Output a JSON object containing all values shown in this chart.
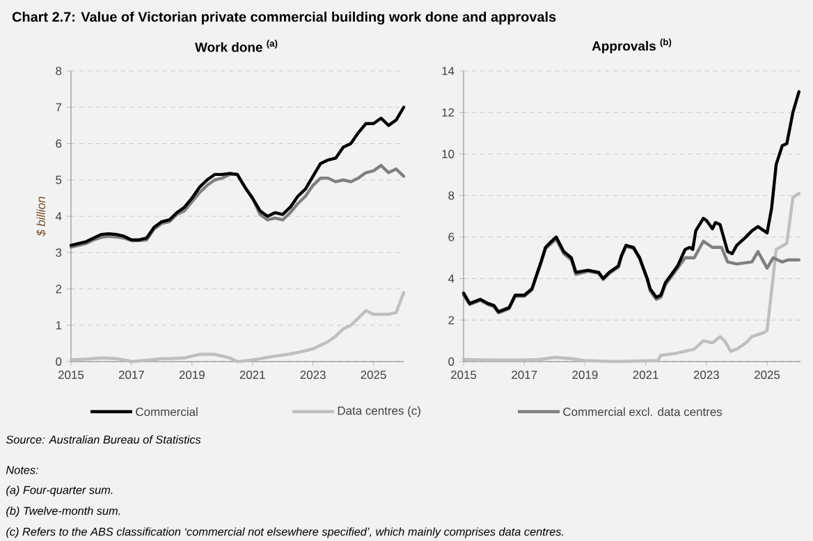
{
  "chart_data": [
    {
      "type": "line",
      "title": "Chart 2.7: Value of Victorian private commercial building work done and approvals",
      "subtitle": "Work done $^{(a)}$",
      "ylabel": "$ billion",
      "xlim": [
        2015,
        2026
      ],
      "xticks": [
        2015,
        2017,
        2019,
        2021,
        2023,
        2025
      ],
      "ylim": [
        0,
        8
      ],
      "yticks": [
        0,
        1,
        2,
        3,
        4,
        5,
        6,
        7,
        8
      ],
      "grid": "y",
      "legend": "bottom",
      "marker": "none",
      "line_style": "solid",
      "annotations": [
        "Source: Australian Bureau of Statistics",
        "Notes:",
        "(a) Four-quarter sum.",
        "(b) Twelve-month sum.",
        "(c) Refers to the ABS classification ‘commercial not elsewhere specified’, which mainly comprises data centres."
      ],
      "x": [
        2015.0,
        2015.25,
        2015.5,
        2015.75,
        2016.0,
        2016.25,
        2016.5,
        2016.75,
        2017.0,
        2017.25,
        2017.5,
        2017.75,
        2018.0,
        2018.25,
        2018.5,
        2018.75,
        2019.0,
        2019.25,
        2019.5,
        2019.75,
        2020.0,
        2020.25,
        2020.5,
        2020.75,
        2021.0,
        2021.25,
        2021.5,
        2021.75,
        2022.0,
        2022.25,
        2022.5,
        2022.75,
        2023.0,
        2023.25,
        2023.5,
        2023.75,
        2024.0,
        2024.25,
        2024.5,
        2024.75,
        2025.0,
        2025.25,
        2025.5,
        2025.75,
        2026.0
      ],
      "series": [
        {
          "name": "Commercial",
          "color": "#000000",
          "values": [
            3.2,
            3.25,
            3.3,
            3.4,
            3.5,
            3.52,
            3.5,
            3.45,
            3.35,
            3.35,
            3.4,
            3.7,
            3.85,
            3.9,
            4.1,
            4.25,
            4.5,
            4.8,
            5.0,
            5.15,
            5.15,
            5.18,
            5.15,
            4.8,
            4.5,
            4.15,
            4.0,
            4.1,
            4.05,
            4.25,
            4.55,
            4.75,
            5.1,
            5.45,
            5.55,
            5.6,
            5.9,
            6.0,
            6.3,
            6.55,
            6.55,
            6.7,
            6.5,
            6.65,
            7.0
          ]
        },
        {
          "name": "Data centres (c)",
          "color": "#bfbfbf",
          "values": [
            0.05,
            0.06,
            0.07,
            0.08,
            0.1,
            0.09,
            0.08,
            0.05,
            0.0,
            0.02,
            0.04,
            0.06,
            0.08,
            0.08,
            0.09,
            0.1,
            0.15,
            0.2,
            0.2,
            0.2,
            0.15,
            0.1,
            0.0,
            0.02,
            0.05,
            0.08,
            0.12,
            0.15,
            0.18,
            0.21,
            0.25,
            0.3,
            0.35,
            0.45,
            0.55,
            0.7,
            0.9,
            1.0,
            1.2,
            1.4,
            1.3,
            1.3,
            1.3,
            1.35,
            1.9
          ]
        },
        {
          "name": "Commercial excl. data centres",
          "color": "#7f7f7f",
          "values": [
            3.15,
            3.2,
            3.25,
            3.35,
            3.42,
            3.45,
            3.43,
            3.4,
            3.33,
            3.33,
            3.35,
            3.65,
            3.8,
            3.85,
            4.05,
            4.15,
            4.4,
            4.65,
            4.85,
            5.0,
            5.05,
            5.15,
            5.15,
            4.8,
            4.5,
            4.05,
            3.9,
            3.95,
            3.9,
            4.1,
            4.35,
            4.55,
            4.85,
            5.05,
            5.05,
            4.95,
            5.0,
            4.95,
            5.05,
            5.2,
            5.25,
            5.4,
            5.2,
            5.3,
            5.1
          ]
        }
      ]
    },
    {
      "type": "line",
      "title": "Approvals $^{(b)}$",
      "xlim": [
        2015,
        2026.1
      ],
      "xticks": [
        2015,
        2017,
        2019,
        2021,
        2023,
        2025
      ],
      "ylim": [
        0,
        14
      ],
      "yticks": [
        0,
        2,
        4,
        6,
        8,
        10,
        12,
        14
      ],
      "grid": "y",
      "marker": "none",
      "line_style": "solid",
      "series": [
        {
          "color": "#000000",
          "x": [
            2015.0,
            2015.2,
            2015.55,
            2015.8,
            2016.0,
            2016.15,
            2016.5,
            2016.7,
            2017.0,
            2017.25,
            2017.55,
            2017.7,
            2017.9,
            2018.05,
            2018.3,
            2018.55,
            2018.7,
            2019.1,
            2019.45,
            2019.6,
            2019.8,
            2020.1,
            2020.2,
            2020.35,
            2020.6,
            2020.8,
            2021.05,
            2021.15,
            2021.35,
            2021.5,
            2021.65,
            2021.9,
            2022.05,
            2022.3,
            2022.45,
            2022.55,
            2022.65,
            2022.9,
            2023.0,
            2023.2,
            2023.3,
            2023.45,
            2023.7,
            2023.85,
            2024.0,
            2024.3,
            2024.5,
            2024.7,
            2025.0,
            2025.15,
            2025.3,
            2025.5,
            2025.65,
            2025.85,
            2026.05
          ],
          "values": [
            3.3,
            2.8,
            3.0,
            2.8,
            2.7,
            2.4,
            2.6,
            3.2,
            3.2,
            3.5,
            4.8,
            5.5,
            5.8,
            6.0,
            5.3,
            5.0,
            4.3,
            4.4,
            4.3,
            4.0,
            4.3,
            4.6,
            5.1,
            5.6,
            5.5,
            5.0,
            4.0,
            3.5,
            3.1,
            3.2,
            3.8,
            4.3,
            4.6,
            5.4,
            5.5,
            5.4,
            6.3,
            6.9,
            6.8,
            6.4,
            6.7,
            6.6,
            5.3,
            5.2,
            5.6,
            6.0,
            6.3,
            6.5,
            6.2,
            7.4,
            9.5,
            10.4,
            10.5,
            12.0,
            13.0
          ]
        },
        {
          "color": "#bfbfbf",
          "x": [
            2015.0,
            2016.0,
            2017.0,
            2017.5,
            2018.0,
            2018.5,
            2019.0,
            2020.0,
            2021.4,
            2021.5,
            2022.0,
            2022.6,
            2022.9,
            2023.2,
            2023.45,
            2023.6,
            2023.8,
            2024.0,
            2024.3,
            2024.5,
            2024.9,
            2025.0,
            2025.1,
            2025.3,
            2025.65,
            2025.85,
            2026.05
          ],
          "values": [
            0.1,
            0.08,
            0.08,
            0.1,
            0.2,
            0.15,
            0.05,
            0.0,
            0.05,
            0.3,
            0.4,
            0.6,
            1.0,
            0.9,
            1.2,
            1.0,
            0.5,
            0.6,
            0.9,
            1.2,
            1.4,
            1.5,
            2.8,
            5.4,
            5.7,
            7.9,
            8.1
          ]
        },
        {
          "color": "#7f7f7f",
          "x": [
            2015.0,
            2015.2,
            2015.55,
            2015.8,
            2016.0,
            2016.15,
            2016.5,
            2016.7,
            2017.0,
            2017.25,
            2017.55,
            2017.7,
            2017.9,
            2018.05,
            2018.3,
            2018.55,
            2018.7,
            2019.1,
            2019.45,
            2019.6,
            2019.8,
            2020.1,
            2020.2,
            2020.35,
            2020.6,
            2020.8,
            2021.05,
            2021.15,
            2021.35,
            2021.5,
            2021.65,
            2021.9,
            2022.3,
            2022.6,
            2022.9,
            2023.2,
            2023.5,
            2023.7,
            2024.0,
            2024.5,
            2024.7,
            2025.0,
            2025.2,
            2025.5,
            2025.7,
            2026.05
          ],
          "values": [
            3.2,
            2.75,
            2.95,
            2.75,
            2.65,
            2.35,
            2.55,
            3.15,
            3.15,
            3.45,
            4.75,
            5.45,
            5.7,
            5.9,
            5.2,
            4.9,
            4.2,
            4.35,
            4.25,
            3.95,
            4.25,
            4.55,
            5.05,
            5.55,
            5.45,
            4.95,
            3.95,
            3.4,
            3.0,
            3.1,
            3.7,
            4.2,
            5.0,
            5.0,
            5.8,
            5.5,
            5.5,
            4.8,
            4.7,
            4.8,
            5.3,
            4.5,
            5.0,
            4.8,
            4.9,
            4.9
          ]
        }
      ]
    }
  ]
}
